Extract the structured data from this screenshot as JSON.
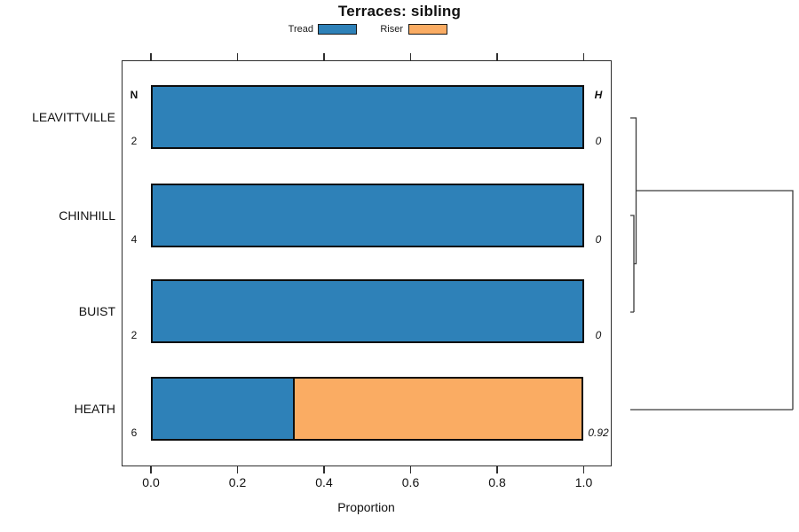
{
  "title": "Terraces: sibling",
  "legend": [
    {
      "label": "Tread",
      "color": "#2E81B8"
    },
    {
      "label": "Riser",
      "color": "#FAAC63"
    }
  ],
  "columns": {
    "left_header": "N",
    "right_header": "H"
  },
  "axis": {
    "xlabel": "Proportion",
    "ticks": [
      "0.0",
      "0.2",
      "0.4",
      "0.6",
      "0.8",
      "1.0"
    ]
  },
  "rows": [
    {
      "label": "LEAVITTVILLE",
      "n": "2",
      "h": "0"
    },
    {
      "label": "CHINHILL",
      "n": "4",
      "h": "0"
    },
    {
      "label": "BUIST",
      "n": "2",
      "h": "0"
    },
    {
      "label": "HEATH",
      "n": "6",
      "h": "0.92"
    }
  ],
  "chart_data": {
    "type": "bar",
    "orientation": "horizontal",
    "stacked": true,
    "title": "Terraces: sibling",
    "xlabel": "Proportion",
    "xlim": [
      0,
      1
    ],
    "xticks": [
      0,
      0.2,
      0.4,
      0.6,
      0.8,
      1.0
    ],
    "grid": false,
    "legend_position": "top",
    "categories": [
      "LEAVITTVILLE",
      "CHINHILL",
      "BUIST",
      "HEATH"
    ],
    "series": [
      {
        "name": "Tread",
        "color": "#2E81B8",
        "values": [
          1,
          1,
          1,
          0.333
        ]
      },
      {
        "name": "Riser",
        "color": "#FAAC63",
        "values": [
          0,
          0,
          0,
          0.667
        ]
      }
    ],
    "annotations": {
      "N": [
        2,
        4,
        2,
        6
      ],
      "H": [
        0,
        0,
        0,
        0.92
      ]
    },
    "dendrogram": {
      "side": "right",
      "leaf_order": [
        "LEAVITTVILLE",
        "CHINHILL",
        "BUIST",
        "HEATH"
      ],
      "merges": [
        {
          "pair": [
            "CHINHILL",
            "BUIST"
          ],
          "height": 0
        },
        {
          "pair": [
            "LEAVITTVILLE",
            "(CHINHILL,BUIST)"
          ],
          "height": 0.01
        },
        {
          "pair": [
            "(LEAVITTVILLE,CHINHILL,BUIST)",
            "HEATH"
          ],
          "height": 0.92
        }
      ]
    }
  }
}
